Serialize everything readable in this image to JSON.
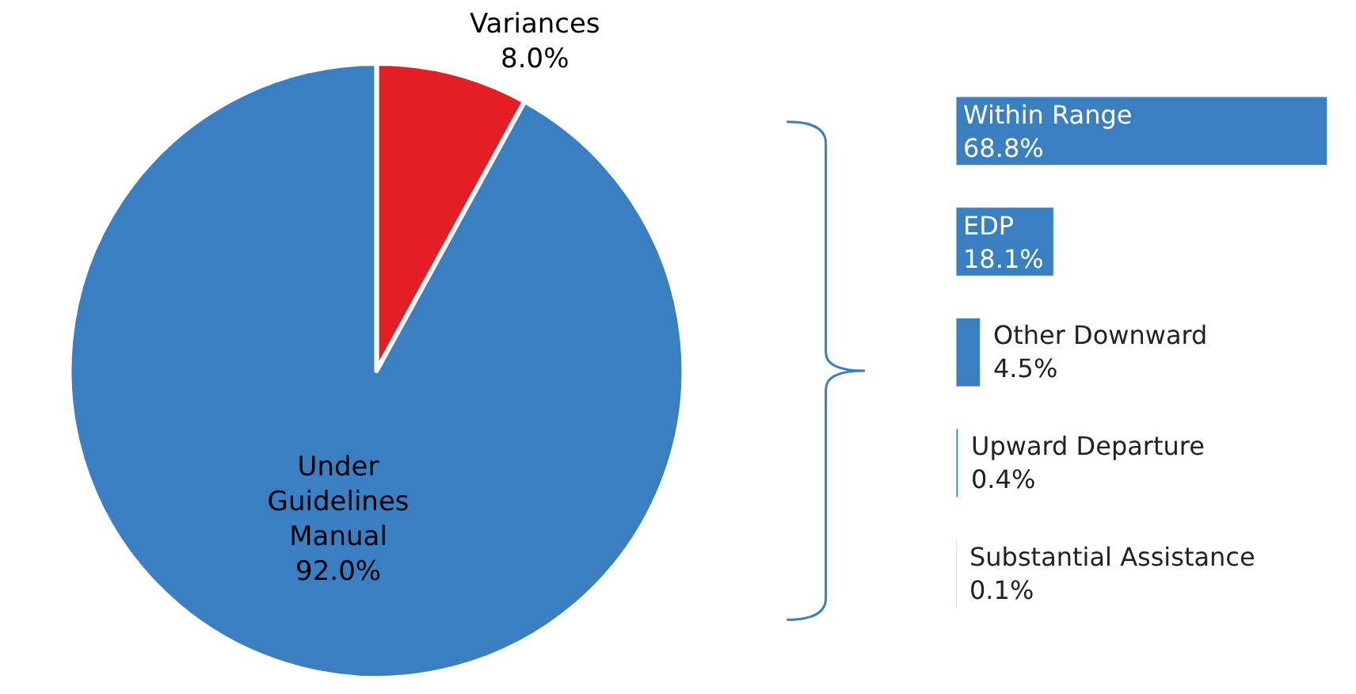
{
  "chart_data": [
    {
      "type": "pie",
      "categories": [
        "Variances",
        "Under\nGuidelines\nManual"
      ],
      "values": [
        8.0,
        92.0
      ],
      "colors": [
        "#e31e24",
        "#3a7fc1"
      ],
      "value_labels": [
        "8.0%",
        "92.0%"
      ],
      "legend": false
    },
    {
      "type": "bar",
      "orientation": "horizontal",
      "categories": [
        "Within Range",
        "EDP",
        "Other Downward",
        "Upward Departure",
        "Substantial Assistance"
      ],
      "values": [
        68.8,
        18.1,
        4.5,
        0.4,
        0.1
      ],
      "color": "#3a7fc1",
      "value_labels": [
        "68.8%",
        "18.1%",
        "4.5%",
        "0.4%",
        "0.1%"
      ],
      "legend": false
    }
  ]
}
